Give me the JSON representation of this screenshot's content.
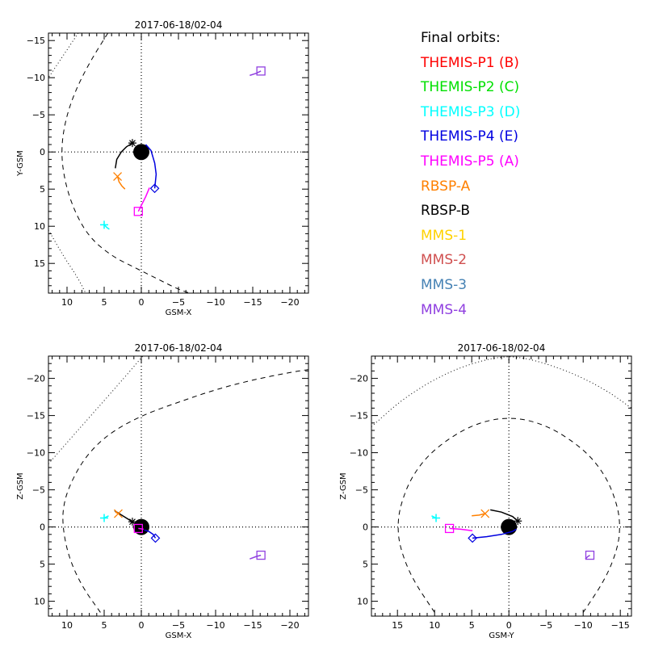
{
  "legend": {
    "title": "Final orbits:",
    "items": [
      {
        "label": "THEMIS-P1 (B)",
        "color": "#ff0000"
      },
      {
        "label": "THEMIS-P2 (C)",
        "color": "#00e000"
      },
      {
        "label": "THEMIS-P3 (D)",
        "color": "#00ffff"
      },
      {
        "label": "THEMIS-P4 (E)",
        "color": "#0000e0"
      },
      {
        "label": "THEMIS-P5 (A)",
        "color": "#ff00ff"
      },
      {
        "label": "RBSP-A",
        "color": "#ff8000"
      },
      {
        "label": "RBSP-B",
        "color": "#000000"
      },
      {
        "label": "MMS-1",
        "color": "#ffd200"
      },
      {
        "label": "MMS-2",
        "color": "#d05050"
      },
      {
        "label": "MMS-3",
        "color": "#4682b4"
      },
      {
        "label": "MMS-4",
        "color": "#9040e0"
      }
    ]
  },
  "chart_data": [
    {
      "type": "scatter",
      "id": "xy",
      "title": "2017-06-18/02-04",
      "xlabel": "GSM-X",
      "ylabel": "Y-GSM",
      "xlim": [
        12.5,
        -22.5
      ],
      "ylim": [
        19,
        -16
      ],
      "xticks": [
        10,
        5,
        0,
        -5,
        -10,
        -15,
        -20
      ],
      "yticks": [
        -15,
        -10,
        -5,
        0,
        5,
        10,
        15
      ],
      "magnetopause": {
        "style": "dashed",
        "points": [
          [
            4.5,
            -16
          ],
          [
            7,
            -12
          ],
          [
            9,
            -8
          ],
          [
            10.3,
            -4
          ],
          [
            10.8,
            0
          ],
          [
            10.3,
            4
          ],
          [
            9,
            8
          ],
          [
            7,
            11.5
          ],
          [
            4,
            14
          ],
          [
            1,
            15.5
          ],
          [
            -2,
            17
          ],
          [
            -5,
            18.5
          ],
          [
            -6.5,
            19
          ]
        ]
      },
      "bow_shock": {
        "style": "dotted",
        "points": [
          [
            8.5,
            -16
          ],
          [
            10.5,
            -13
          ],
          [
            12.5,
            -10
          ]
        ],
        "points2": [
          [
            12.5,
            10.5
          ],
          [
            10.5,
            14
          ],
          [
            8.5,
            17
          ],
          [
            7.5,
            19
          ]
        ]
      },
      "tracks": [
        {
          "name": "RBSP-B",
          "color": "#000000",
          "symbol": "asterisk",
          "pos": [
            1.2,
            -1.2
          ],
          "path": [
            [
              3.5,
              2.2
            ],
            [
              3.3,
              1
            ],
            [
              2.7,
              0
            ],
            [
              2,
              -0.7
            ],
            [
              1.2,
              -1.2
            ]
          ]
        },
        {
          "name": "RBSP-A",
          "color": "#ff8000",
          "symbol": "x",
          "pos": [
            3.2,
            3.3
          ],
          "path": [
            [
              3.2,
              3.3
            ],
            [
              3,
              4
            ],
            [
              2.6,
              4.6
            ],
            [
              2.2,
              5
            ]
          ]
        },
        {
          "name": "THEMIS-P4 (E)",
          "color": "#0000e0",
          "symbol": "diamond",
          "pos": [
            -1.8,
            4.9
          ],
          "path": [
            [
              -0.6,
              -1
            ],
            [
              -1.3,
              -0.2
            ],
            [
              -1.8,
              1.5
            ],
            [
              -2,
              3
            ],
            [
              -1.8,
              4.9
            ]
          ]
        },
        {
          "name": "THEMIS-P5 (A)",
          "color": "#ff00ff",
          "symbol": "square",
          "pos": [
            0.4,
            8
          ],
          "path": [
            [
              0.4,
              8
            ],
            [
              -0.2,
              6.8
            ],
            [
              -0.6,
              6
            ],
            [
              -1.1,
              4.8
            ]
          ]
        },
        {
          "name": "THEMIS-P3 (D)",
          "color": "#00ffff",
          "symbol": "plus",
          "pos": [
            5,
            9.8
          ],
          "path": [
            [
              5,
              9.8
            ],
            [
              4.6,
              10.2
            ],
            [
              4.3,
              10.4
            ]
          ]
        },
        {
          "name": "MMS-4",
          "color": "#9040e0",
          "symbol": "square",
          "pos": [
            -16.1,
            -10.9
          ],
          "path": [
            [
              -14.6,
              -10.3
            ],
            [
              -15.5,
              -10.6
            ],
            [
              -16.1,
              -10.9
            ]
          ]
        }
      ]
    },
    {
      "type": "scatter",
      "id": "xz",
      "title": "2017-06-18/02-04",
      "xlabel": "GSM-X",
      "ylabel": "Z-GSM",
      "xlim": [
        12.5,
        -22.5
      ],
      "ylim": [
        12,
        -23
      ],
      "xticks": [
        10,
        5,
        0,
        -5,
        -10,
        -15,
        -20
      ],
      "yticks": [
        10,
        5,
        0,
        -5,
        -10,
        -15,
        -20
      ],
      "magnetopause": {
        "style": "dashed",
        "points": [
          [
            5.5,
            11.5
          ],
          [
            8,
            8
          ],
          [
            9.8,
            4
          ],
          [
            10.6,
            0
          ],
          [
            10.5,
            -3
          ],
          [
            9.5,
            -6
          ],
          [
            7.5,
            -9.5
          ],
          [
            4.5,
            -12.5
          ],
          [
            0,
            -15
          ],
          [
            -5,
            -16.8
          ],
          [
            -10,
            -18.5
          ],
          [
            -15,
            -19.8
          ],
          [
            -20,
            -20.8
          ],
          [
            -22.5,
            -21.2
          ]
        ]
      },
      "bow_shock": {
        "style": "dotted",
        "points": [
          [
            12.5,
            -8.5
          ],
          [
            9,
            -12.5
          ],
          [
            5,
            -17
          ],
          [
            1.5,
            -21
          ],
          [
            -0.2,
            -23
          ]
        ],
        "points2": [
          [
            12,
            11
          ],
          [
            12.5,
            10.5
          ]
        ]
      },
      "tracks": [
        {
          "name": "RBSP-B",
          "color": "#000000",
          "symbol": "asterisk",
          "pos": [
            1.2,
            -0.7
          ],
          "path": [
            [
              3.6,
              -2.2
            ],
            [
              2.5,
              -1.5
            ],
            [
              1.2,
              -0.7
            ]
          ]
        },
        {
          "name": "RBSP-A",
          "color": "#ff8000",
          "symbol": "x",
          "pos": [
            3.1,
            -1.8
          ],
          "path": [
            [
              3.1,
              -1.8
            ],
            [
              3.5,
              -2
            ]
          ]
        },
        {
          "name": "THEMIS-P4 (E)",
          "color": "#0000e0",
          "symbol": "diamond",
          "pos": [
            -1.9,
            1.5
          ],
          "path": [
            [
              -0.4,
              0.4
            ],
            [
              -1,
              0.6
            ],
            [
              -1.6,
              1
            ],
            [
              -1.9,
              1.5
            ]
          ]
        },
        {
          "name": "THEMIS-P5 (A)",
          "color": "#ff00ff",
          "symbol": "square",
          "pos": [
            0.4,
            0.2
          ],
          "path": [
            [
              0.4,
              0.2
            ],
            [
              -0.3,
              0.3
            ]
          ]
        },
        {
          "name": "THEMIS-P3 (D)",
          "color": "#00ffff",
          "symbol": "plus",
          "pos": [
            5,
            -1.2
          ],
          "path": [
            [
              5,
              -1.2
            ],
            [
              4.4,
              -1.5
            ]
          ]
        },
        {
          "name": "MMS-4",
          "color": "#9040e0",
          "symbol": "square",
          "pos": [
            -16.1,
            3.8
          ],
          "path": [
            [
              -14.6,
              4.3
            ],
            [
              -15.4,
              4
            ],
            [
              -16.1,
              3.8
            ]
          ]
        }
      ]
    },
    {
      "type": "scatter",
      "id": "yz",
      "title": "2017-06-18/02-04",
      "xlabel": "GSM-Y",
      "ylabel": "Z-GSM",
      "xlim": [
        18.5,
        -16.5
      ],
      "ylim": [
        12,
        -23
      ],
      "xticks": [
        15,
        10,
        5,
        0,
        -5,
        -10,
        -15
      ],
      "yticks": [
        10,
        5,
        0,
        -5,
        -10,
        -15,
        -20
      ],
      "magnetopause": {
        "style": "dashed",
        "points": [
          [
            10,
            11.5
          ],
          [
            13,
            7
          ],
          [
            14.6,
            3
          ],
          [
            15,
            0
          ],
          [
            14.6,
            -3
          ],
          [
            13,
            -7
          ],
          [
            10,
            -10.6
          ],
          [
            5,
            -13.8
          ],
          [
            0,
            -14.9
          ],
          [
            -5,
            -13.8
          ],
          [
            -10,
            -10.6
          ],
          [
            -13,
            -7
          ],
          [
            -14.6,
            -3
          ],
          [
            -15,
            0
          ],
          [
            -14.6,
            3
          ],
          [
            -13,
            7
          ],
          [
            -10,
            11.5
          ]
        ]
      },
      "bow_shock": {
        "style": "dotted",
        "points": [
          [
            18.5,
            -13.5
          ],
          [
            14,
            -17.5
          ],
          [
            8,
            -21
          ],
          [
            2,
            -22.9
          ],
          [
            -2,
            -22.9
          ],
          [
            -8,
            -21
          ],
          [
            -13,
            -18.5
          ],
          [
            -16.5,
            -16
          ]
        ]
      },
      "tracks": [
        {
          "name": "RBSP-B",
          "color": "#000000",
          "symbol": "asterisk",
          "pos": [
            -1.2,
            -0.8
          ],
          "path": [
            [
              2.5,
              -2.3
            ],
            [
              1,
              -2
            ],
            [
              -0.5,
              -1.4
            ],
            [
              -1.2,
              -0.8
            ]
          ]
        },
        {
          "name": "RBSP-A",
          "color": "#ff8000",
          "symbol": "x",
          "pos": [
            3.2,
            -1.8
          ],
          "path": [
            [
              3.2,
              -1.8
            ],
            [
              4,
              -1.6
            ],
            [
              5,
              -1.5
            ]
          ]
        },
        {
          "name": "THEMIS-P4 (E)",
          "color": "#0000e0",
          "symbol": "diamond",
          "pos": [
            4.9,
            1.5
          ],
          "path": [
            [
              4.9,
              1.5
            ],
            [
              3,
              1.3
            ],
            [
              1,
              1
            ],
            [
              -0.5,
              0.6
            ],
            [
              -1,
              0.3
            ]
          ]
        },
        {
          "name": "THEMIS-P5 (A)",
          "color": "#ff00ff",
          "symbol": "square",
          "pos": [
            8,
            0.2
          ],
          "path": [
            [
              8,
              0.2
            ],
            [
              6.5,
              0.3
            ],
            [
              4.9,
              0.5
            ]
          ]
        },
        {
          "name": "THEMIS-P3 (D)",
          "color": "#00ffff",
          "symbol": "plus",
          "pos": [
            9.8,
            -1.2
          ],
          "path": [
            [
              9.8,
              -1.2
            ],
            [
              10.4,
              -1.5
            ]
          ]
        },
        {
          "name": "MMS-4",
          "color": "#9040e0",
          "symbol": "square",
          "pos": [
            -10.9,
            3.8
          ],
          "path": [
            [
              -10.3,
              4.3
            ],
            [
              -10.6,
              4
            ],
            [
              -10.9,
              3.8
            ]
          ]
        }
      ]
    }
  ]
}
